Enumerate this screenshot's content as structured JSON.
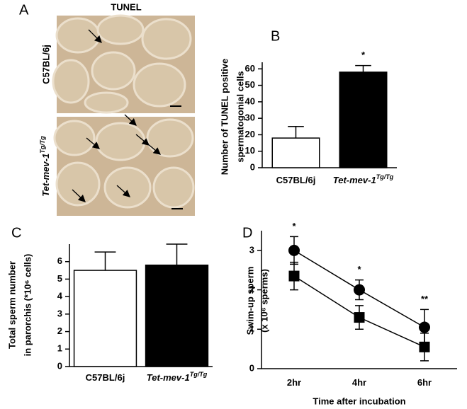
{
  "panel_a": {
    "label": "A",
    "title": "TUNEL",
    "rows": [
      "C57BL/6j",
      "Tet-mev-1"
    ],
    "row_superscripts": [
      null,
      "Tg/Tg"
    ]
  },
  "chart_data": [
    {
      "type": "bar",
      "label": "B",
      "ylabel": [
        "Number of TUNEL positive",
        "spermatogonial cells"
      ],
      "categories": [
        "C57BL/6j",
        "Tet-mev-1"
      ],
      "category_superscripts": [
        null,
        "Tg/Tg"
      ],
      "values": [
        18,
        58
      ],
      "errors": [
        7,
        4
      ],
      "colors": [
        "#ffffff",
        "#000000"
      ],
      "annotations": [
        null,
        "*"
      ],
      "ylim": [
        0,
        64
      ],
      "yticks": [
        0,
        10,
        20,
        30,
        40,
        50,
        60
      ]
    },
    {
      "type": "bar",
      "label": "C",
      "ylabel": [
        "Total sperm number",
        "in parorchis (*10⁶ cells)"
      ],
      "categories": [
        "C57BL/6j",
        "Tet-mev-1"
      ],
      "category_superscripts": [
        null,
        "Tg/Tg"
      ],
      "values": [
        5.5,
        5.8
      ],
      "errors": [
        1.05,
        1.2
      ],
      "colors": [
        "#ffffff",
        "#000000"
      ],
      "ylim": [
        0,
        7
      ],
      "yticks": [
        0,
        1,
        2,
        3,
        4,
        5,
        6
      ]
    },
    {
      "type": "line",
      "label": "D",
      "ylabel": [
        "Swim-up sperm",
        "(x 10⁶ sperms)"
      ],
      "xlabel": "Time after incubation",
      "categories": [
        "2hr",
        "4hr",
        "6hr"
      ],
      "series": [
        {
          "marker": "circle",
          "color": "#000000",
          "values": [
            3.0,
            2.0,
            1.05
          ],
          "errors": [
            0.35,
            0.25,
            0.45
          ]
        },
        {
          "marker": "square",
          "color": "#000000",
          "values": [
            2.35,
            1.3,
            0.55
          ],
          "errors": [
            0.35,
            0.3,
            0.35
          ]
        }
      ],
      "annotations": [
        "*",
        "*",
        "**"
      ],
      "ylim": [
        0,
        3.5
      ],
      "yticks": [
        0,
        1,
        2,
        3
      ]
    }
  ]
}
